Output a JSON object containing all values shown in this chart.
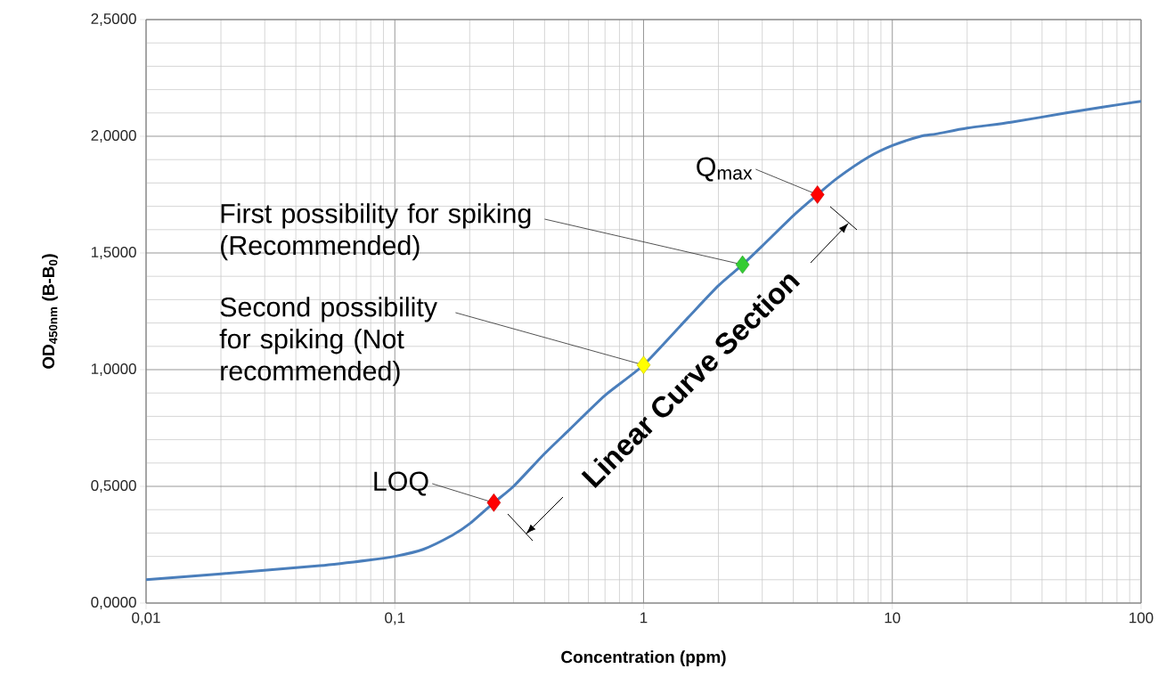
{
  "chart_data": {
    "type": "line",
    "xlabel": "Concentration (ppm)",
    "ylabel": "OD$_{450nm}$ (B-B$_{0}$)",
    "log": "x",
    "grid": true,
    "xlim": [
      0.01,
      100
    ],
    "ylim": [
      0,
      2.5
    ],
    "xticks": [
      {
        "value": 0.01,
        "label": "0,01"
      },
      {
        "value": 0.1,
        "label": "0,1"
      },
      1,
      10,
      100
    ],
    "yticks": [
      {
        "value": 0,
        "label": "0,0000"
      },
      {
        "value": 0.5,
        "label": "0,5000"
      },
      {
        "value": 1,
        "label": "1,0000"
      },
      {
        "value": 1.5,
        "label": "1,5000"
      },
      {
        "value": 2,
        "label": "2,0000"
      },
      {
        "value": 2.5,
        "label": "2,5000"
      }
    ],
    "series": [
      {
        "color": "#4a7ebb",
        "x": [
          0.01,
          0.02,
          0.05,
          0.08,
          0.1,
          0.13,
          0.17,
          0.2,
          0.25,
          0.3,
          0.4,
          0.5,
          0.7,
          1,
          1.5,
          2,
          2.5,
          3,
          4,
          5,
          6,
          8,
          10,
          13,
          15,
          20,
          30,
          50,
          70,
          100
        ],
        "values": [
          0.1,
          0.125,
          0.16,
          0.185,
          0.2,
          0.23,
          0.29,
          0.34,
          0.43,
          0.5,
          0.64,
          0.74,
          0.89,
          1.02,
          1.22,
          1.36,
          1.45,
          1.53,
          1.66,
          1.75,
          1.82,
          1.91,
          1.96,
          2.0,
          2.01,
          2.035,
          2.06,
          2.1,
          2.125,
          2.15
        ]
      },
      {
        "type": "scatter",
        "marker": "diamond",
        "x": [
          0.25,
          1,
          2.5,
          5
        ],
        "values": [
          0.43,
          1.02,
          1.45,
          1.75
        ],
        "colors": [
          "#ff0000",
          "#ffff00",
          "#33cc33",
          "#ff0000"
        ]
      }
    ],
    "annotations": [
      {
        "text": "Q$_{max}$",
        "x": 5,
        "y": 1.75
      },
      {
        "text": "First possibility for spiking (Recommended)",
        "x": 2.5,
        "y": 1.45
      },
      {
        "text": "Second possibility for spiking (Not recommended)",
        "x": 1,
        "y": 1.02
      },
      {
        "text": "LOQ",
        "x": 0.25,
        "y": 0.43
      },
      "Linear Curve Section"
    ]
  }
}
